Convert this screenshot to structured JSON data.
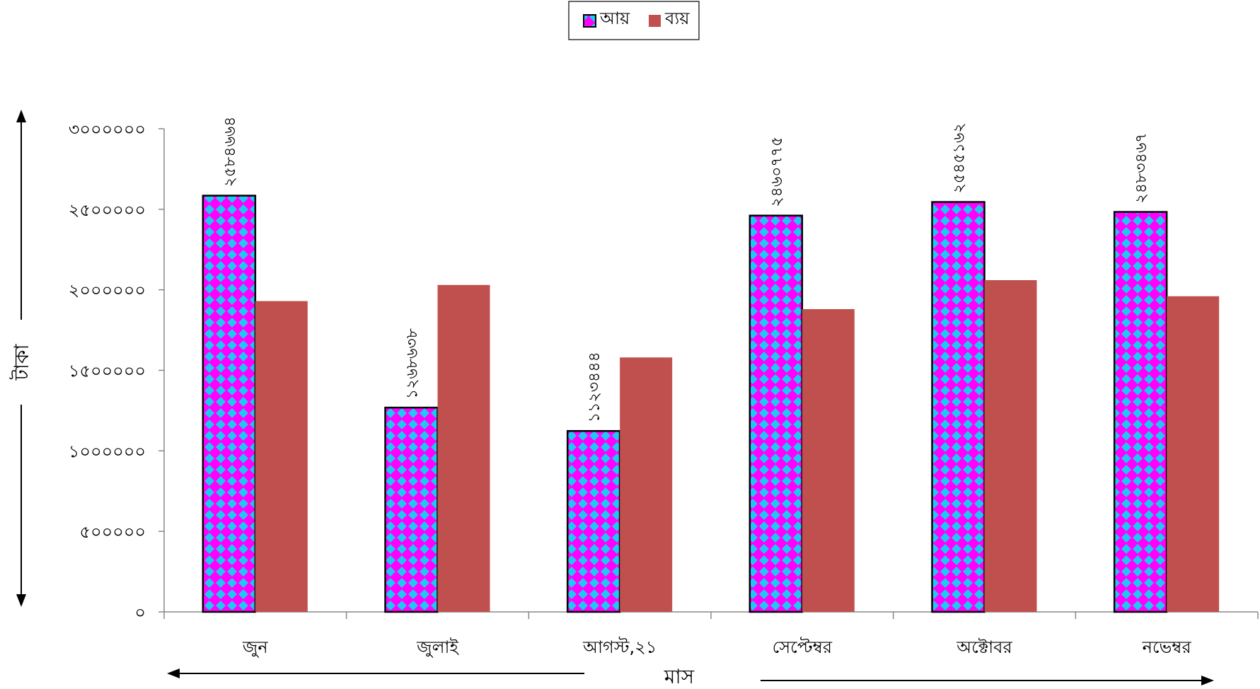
{
  "chart_data": {
    "type": "bar",
    "categories": [
      "জুন",
      "জুলাই",
      "আগস্ট,২১",
      "সেপ্টেম্বর",
      "অক্টোবর",
      "নভেম্বর"
    ],
    "series": [
      {
        "name": "আয়",
        "values": [
          2584664,
          1268638,
          1123444,
          2460775,
          2545162,
          2483467
        ],
        "data_labels": [
          "২৫৮৪৬৬৪",
          "১২৬৮৬৩৮",
          "১১২৩৪৪৪",
          "২৪৬০৭৭৫",
          "২৫৪৫১৬২",
          "২৪৮৩৪৬৭"
        ],
        "color": "#ff00ff",
        "pattern_color": "#1ec8f0"
      },
      {
        "name": "ব্যয়",
        "values": [
          1930000,
          2030000,
          1580000,
          1880000,
          2060000,
          1960000
        ],
        "color": "#c0504d"
      }
    ],
    "y_ticks": [
      0,
      500000,
      1000000,
      1500000,
      2000000,
      2500000,
      3000000
    ],
    "y_tick_labels": [
      "০",
      "৫০০০০০",
      "১০০০০০০",
      "১৫০০০০০",
      "২০০০০০০",
      "২৫০০০০০",
      "৩০০০০০০"
    ],
    "ylim": [
      0,
      3000000
    ],
    "xlabel": "মাস",
    "ylabel": "টাকা",
    "legend_position": "top-center",
    "grid": false
  }
}
